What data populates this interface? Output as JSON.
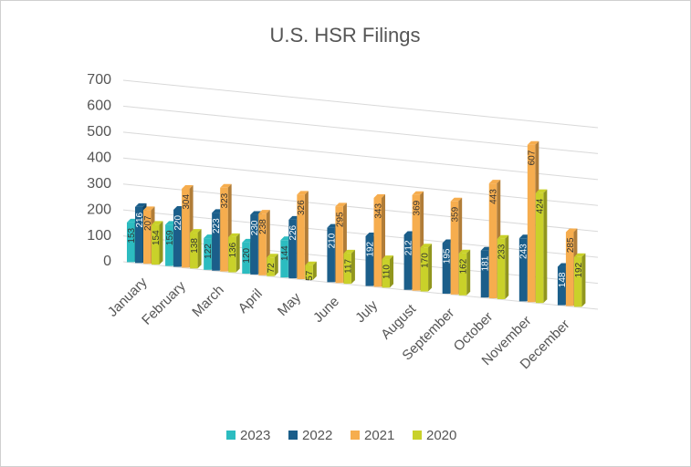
{
  "chart_data": {
    "type": "bar3d",
    "title": "U.S. HSR Filings",
    "categories": [
      "January",
      "February",
      "March",
      "April",
      "May",
      "June",
      "July",
      "August",
      "September",
      "October",
      "November",
      "December"
    ],
    "series": [
      {
        "name": "2023",
        "color": "#2cbcc0",
        "values": [
          153,
          159,
          122,
          120,
          144,
          null,
          null,
          null,
          null,
          null,
          null,
          null
        ]
      },
      {
        "name": "2022",
        "color": "#1b5e8a",
        "values": [
          216,
          220,
          223,
          230,
          226,
          210,
          192,
          212,
          195,
          181,
          243,
          148
        ]
      },
      {
        "name": "2021",
        "color": "#f6ad4e",
        "values": [
          207,
          304,
          323,
          238,
          326,
          295,
          343,
          369,
          359,
          443,
          607,
          285
        ]
      },
      {
        "name": "2020",
        "color": "#c9d12a",
        "values": [
          154,
          138,
          136,
          72,
          57,
          117,
          110,
          170,
          162,
          233,
          424,
          192
        ]
      }
    ],
    "ylim": [
      0,
      700
    ],
    "yticks": [
      0,
      100,
      200,
      300,
      400,
      500,
      600,
      700
    ],
    "grid": true,
    "legend": "bottom"
  }
}
